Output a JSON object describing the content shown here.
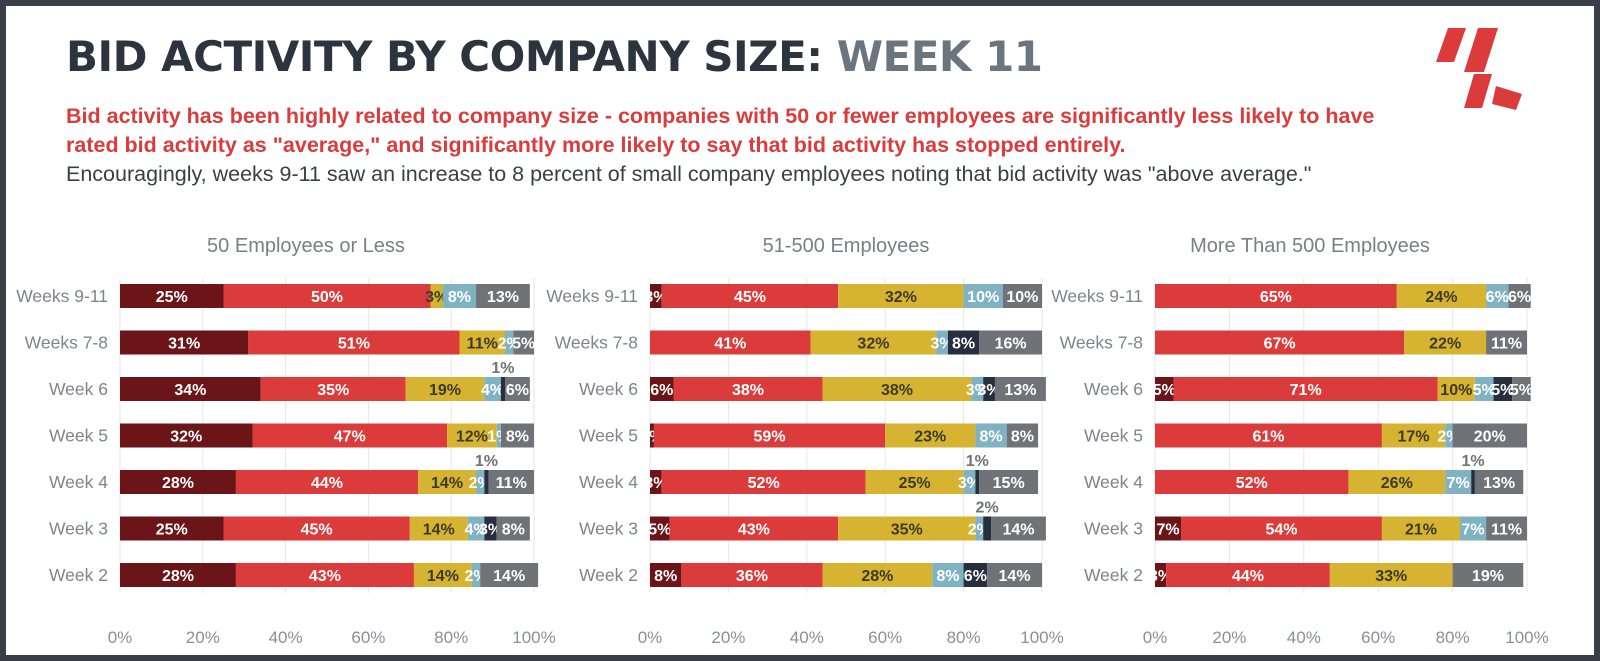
{
  "header": {
    "title_main": "BID ACTIVITY BY COMPANY SIZE:",
    "title_accent": "WEEK 11",
    "subtitle_bold": "Bid activity has been highly related to company size - companies with 50 or fewer employees are significantly less likely to have rated bid activity as \"average,\" and significantly more likely to say that bid activity has stopped entirely.",
    "subtitle_regular": "Encouragingly, weeks 9-11 saw an increase to 8 percent of small company employees noting that bid activity was \"above average.\""
  },
  "colors": {
    "dark_red": "#6b1519",
    "red": "#dc3b3b",
    "gold": "#d6b431",
    "light_blue": "#7fb2c2",
    "navy": "#262f3d",
    "gray": "#6f7378",
    "title": "#2c3440",
    "title_accent": "#6b7580"
  },
  "chart_data": [
    {
      "type": "stacked-bar-horizontal",
      "title": "50 Employees or Less",
      "categories": [
        "Weeks 9-11",
        "Weeks 7-8",
        "Week 6",
        "Week 5",
        "Week 4",
        "Week 3",
        "Week 2"
      ],
      "x_ticks": [
        "0%",
        "20%",
        "40%",
        "60%",
        "80%",
        "100%"
      ],
      "xlim": [
        0,
        100
      ],
      "series": [
        {
          "color": "#6b1519",
          "values": [
            25,
            31,
            34,
            32,
            28,
            25,
            28
          ]
        },
        {
          "color": "#dc3b3b",
          "values": [
            50,
            51,
            35,
            47,
            44,
            45,
            43
          ]
        },
        {
          "color": "#d6b431",
          "values": [
            3,
            11,
            19,
            12,
            14,
            14,
            14
          ]
        },
        {
          "color": "#7fb2c2",
          "values": [
            8,
            2,
            4,
            1,
            2,
            4,
            2
          ]
        },
        {
          "color": "#262f3d",
          "values": [
            0,
            0,
            1,
            0,
            1,
            3,
            0
          ]
        },
        {
          "color": "#6f7378",
          "values": [
            13,
            5,
            6,
            8,
            11,
            8,
            14
          ]
        }
      ]
    },
    {
      "type": "stacked-bar-horizontal",
      "title": "51-500 Employees",
      "categories": [
        "Weeks 9-11",
        "Weeks 7-8",
        "Week 6",
        "Week 5",
        "Week 4",
        "Week 3",
        "Week 2"
      ],
      "x_ticks": [
        "0%",
        "20%",
        "40%",
        "60%",
        "80%",
        "100%"
      ],
      "xlim": [
        0,
        100
      ],
      "series": [
        {
          "color": "#6b1519",
          "values": [
            3,
            0,
            6,
            1,
            3,
            5,
            8
          ]
        },
        {
          "color": "#dc3b3b",
          "values": [
            45,
            41,
            38,
            59,
            52,
            43,
            36
          ]
        },
        {
          "color": "#d6b431",
          "values": [
            32,
            32,
            38,
            23,
            25,
            35,
            28
          ]
        },
        {
          "color": "#7fb2c2",
          "values": [
            10,
            3,
            3,
            8,
            3,
            2,
            8
          ]
        },
        {
          "color": "#262f3d",
          "values": [
            0,
            8,
            3,
            0,
            1,
            2,
            6
          ]
        },
        {
          "color": "#6f7378",
          "values": [
            10,
            16,
            13,
            8,
            15,
            14,
            14
          ]
        }
      ]
    },
    {
      "type": "stacked-bar-horizontal",
      "title": "More Than 500 Employees",
      "categories": [
        "Weeks 9-11",
        "Weeks 7-8",
        "Week 6",
        "Week 5",
        "Week 4",
        "Week 3",
        "Week 2"
      ],
      "x_ticks": [
        "0%",
        "20%",
        "40%",
        "60%",
        "80%",
        "100%"
      ],
      "xlim": [
        0,
        100
      ],
      "series": [
        {
          "color": "#6b1519",
          "values": [
            0,
            0,
            5,
            0,
            0,
            7,
            3
          ]
        },
        {
          "color": "#dc3b3b",
          "values": [
            65,
            67,
            71,
            61,
            52,
            54,
            44
          ]
        },
        {
          "color": "#d6b431",
          "values": [
            24,
            22,
            10,
            17,
            26,
            21,
            33
          ]
        },
        {
          "color": "#7fb2c2",
          "values": [
            6,
            0,
            5,
            2,
            7,
            7,
            0
          ]
        },
        {
          "color": "#262f3d",
          "values": [
            0,
            0,
            5,
            0,
            1,
            0,
            0
          ]
        },
        {
          "color": "#6f7378",
          "values": [
            6,
            11,
            5,
            20,
            13,
            11,
            19
          ]
        }
      ]
    }
  ]
}
